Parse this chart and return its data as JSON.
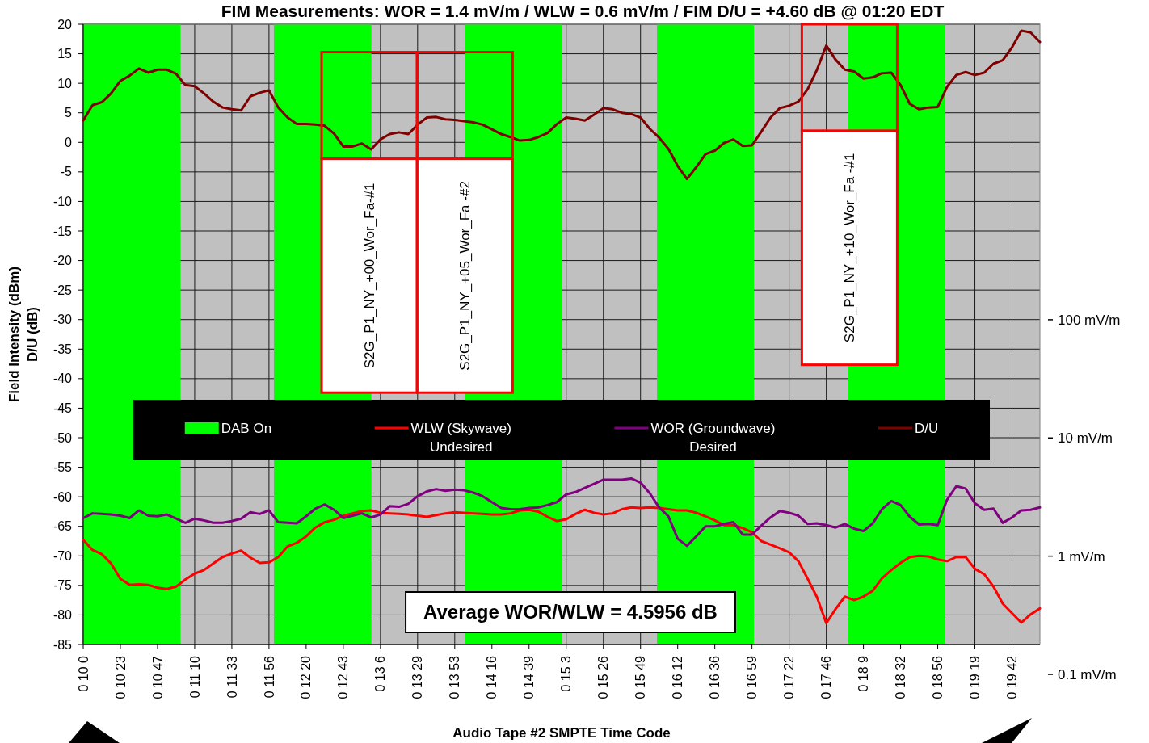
{
  "chart_data": {
    "type": "line",
    "title": "FIM Measurements: WOR = 1.4 mV/m / WLW = 0.6 mV/m / FIM D/U = +4.60 dB @ 01:20 EDT",
    "xlabel": "Audio Tape #2 SMPTE Time Code",
    "ylabel": "Field Intensity (dBm)\nD/U (dB)",
    "categories": [
      "0 10 0",
      null,
      null,
      null,
      "0 10 23",
      null,
      null,
      null,
      "0 10 47",
      null,
      null,
      null,
      "0 11 10",
      null,
      null,
      null,
      "0 11 33",
      null,
      null,
      null,
      "0 11 56",
      null,
      null,
      null,
      "0 12 20",
      null,
      null,
      null,
      "0 12 43",
      null,
      null,
      null,
      "0 13 6",
      null,
      null,
      null,
      "0 13 29",
      null,
      null,
      null,
      "0 13 53",
      null,
      null,
      null,
      "0 14 16",
      null,
      null,
      null,
      "0 14 39",
      null,
      null,
      null,
      "0 15 3",
      null,
      null,
      null,
      "0 15 26",
      null,
      null,
      null,
      "0 15 49",
      null,
      null,
      null,
      "0 16 12",
      null,
      null,
      null,
      "0 16 36",
      null,
      null,
      null,
      "0 16 59",
      null,
      null,
      null,
      "0 17 22",
      null,
      null,
      null,
      "0 17 46",
      null,
      null,
      null,
      "0 18 9",
      null,
      null,
      null,
      "0 18 32",
      null,
      null,
      null,
      "0 18 56",
      null,
      null,
      null,
      "0 19 19",
      null,
      null,
      null,
      "0 19 42",
      null,
      null,
      null
    ],
    "series": [
      {
        "name": "WLW (Skywave)\nUndesired",
        "color": "#ff0000",
        "values": [
          -67.3,
          -69.0,
          -69.7,
          -71.3,
          -73.9,
          -74.9,
          -74.8,
          -74.9,
          -75.4,
          -75.6,
          -75.2,
          -74.0,
          -73.0,
          -72.4,
          -71.3,
          -70.2,
          -69.6,
          -69.1,
          -70.3,
          -71.2,
          -71.1,
          -70.2,
          -68.4,
          -67.8,
          -66.7,
          -65.2,
          -64.3,
          -63.9,
          -63.2,
          -62.8,
          -62.4,
          -62.3,
          -62.7,
          -62.8,
          -62.9,
          -63.0,
          -63.2,
          -63.4,
          -63.1,
          -62.8,
          -62.6,
          -62.7,
          -62.8,
          -62.9,
          -63.0,
          -63.0,
          -62.8,
          -62.3,
          -62.2,
          -62.5,
          -63.4,
          -64.1,
          -63.8,
          -62.9,
          -62.2,
          -62.7,
          -63.0,
          -62.8,
          -62.1,
          -61.8,
          -61.9,
          -61.8,
          -61.9,
          -62.1,
          -62.3,
          -62.3,
          -62.7,
          -63.3,
          -64.0,
          -64.8,
          -64.8,
          -65.3,
          -66.0,
          -67.5,
          -68.1,
          -68.7,
          -69.4,
          -70.9,
          -73.9,
          -77.0,
          -81.4,
          -79.0,
          -76.9,
          -77.5,
          -76.9,
          -75.9,
          -73.8,
          -72.4,
          -71.2,
          -70.2,
          -70.0,
          -70.1,
          -70.6,
          -70.9,
          -70.2,
          -70.2,
          -72.2,
          -73.1,
          -75.2,
          -78.1,
          -79.7,
          -81.3,
          -79.9,
          -78.9
        ]
      },
      {
        "name": "WOR (Groundwave)\nDesired",
        "color": "#800080",
        "values": [
          -63.6,
          -62.8,
          -62.9,
          -63.0,
          -63.2,
          -63.6,
          -62.3,
          -63.2,
          -63.3,
          -63.0,
          -63.7,
          -64.4,
          -63.7,
          -64.0,
          -64.4,
          -64.4,
          -64.1,
          -63.7,
          -62.6,
          -62.9,
          -62.3,
          -64.3,
          -64.4,
          -64.5,
          -63.3,
          -62.0,
          -61.3,
          -62.2,
          -63.6,
          -63.2,
          -62.8,
          -63.5,
          -63.0,
          -61.6,
          -61.7,
          -61.2,
          -59.9,
          -59.1,
          -58.7,
          -59.0,
          -58.8,
          -58.9,
          -59.3,
          -59.9,
          -60.9,
          -61.9,
          -62.1,
          -62.1,
          -61.9,
          -61.8,
          -61.4,
          -60.9,
          -59.6,
          -59.2,
          -58.5,
          -57.8,
          -57.1,
          -57.1,
          -57.1,
          -56.9,
          -57.6,
          -59.4,
          -61.8,
          -63.3,
          -67.1,
          -68.3,
          -66.7,
          -65.0,
          -65.0,
          -64.6,
          -64.3,
          -66.4,
          -66.4,
          -64.9,
          -63.5,
          -62.4,
          -62.7,
          -63.2,
          -64.6,
          -64.5,
          -64.8,
          -65.2,
          -64.6,
          -65.4,
          -65.8,
          -64.5,
          -62.1,
          -60.7,
          -61.4,
          -63.4,
          -64.7,
          -64.6,
          -64.8,
          -60.5,
          -58.2,
          -58.6,
          -61.1,
          -62.2,
          -62.0,
          -64.4,
          -63.5,
          -62.3,
          -62.2,
          -61.8
        ]
      },
      {
        "name": "D/U",
        "color": "#800000",
        "values": [
          3.7,
          6.3,
          6.8,
          8.3,
          10.4,
          11.3,
          12.5,
          11.8,
          12.3,
          12.3,
          11.6,
          9.7,
          9.5,
          8.3,
          6.9,
          5.9,
          5.6,
          5.4,
          7.8,
          8.4,
          8.8,
          5.9,
          4.2,
          3.1,
          3.1,
          3.0,
          2.8,
          1.5,
          -0.7,
          -0.7,
          -0.2,
          -1.2,
          0.5,
          1.4,
          1.7,
          1.4,
          3.0,
          4.2,
          4.3,
          3.9,
          3.8,
          3.6,
          3.4,
          3.0,
          2.2,
          1.4,
          0.9,
          0.3,
          0.4,
          0.9,
          1.6,
          3.1,
          4.2,
          4.0,
          3.7,
          4.7,
          5.8,
          5.6,
          5.0,
          4.8,
          4.2,
          2.3,
          0.8,
          -1.1,
          -4.0,
          -6.2,
          -4.2,
          -2.0,
          -1.4,
          -0.1,
          0.5,
          -0.6,
          -0.5,
          1.8,
          4.2,
          5.8,
          6.2,
          6.9,
          9.0,
          12.3,
          16.4,
          14.0,
          12.3,
          12.0,
          10.8,
          11.0,
          11.7,
          11.8,
          9.7,
          6.5,
          5.6,
          5.9,
          6.0,
          9.4,
          11.4,
          11.9,
          11.4,
          11.8,
          13.3,
          13.9,
          16.1,
          18.9,
          18.6,
          17.0
        ]
      }
    ],
    "ylim": [
      -85,
      20
    ],
    "yticks": [
      -85,
      -80,
      -75,
      -70,
      -65,
      -60,
      -55,
      -50,
      -45,
      -40,
      -35,
      -30,
      -25,
      -20,
      -15,
      -10,
      -5,
      0,
      5,
      10,
      15,
      20
    ],
    "y2lim": [
      0.1,
      31623
    ],
    "y2ticks": [
      {
        "value": 100,
        "label": "100 mV/m"
      },
      {
        "value": 10,
        "label": "10 mV/m"
      },
      {
        "value": 1,
        "label": "1 mV/m"
      },
      {
        "value": 0.1,
        "label": "0.1 mV/m"
      }
    ],
    "log": "y2",
    "grid": true,
    "legend": "center",
    "annotations": [
      "S2G_P1_NY_+00_Wor_Fa-#1",
      "S2G_P1_NY_+05_Wor_Fa -#2",
      "S2G_P1_NY_+10_Wor_Fa -#1",
      "DAB On",
      "Average WOR/WLW = 4.5956 dB"
    ]
  }
}
